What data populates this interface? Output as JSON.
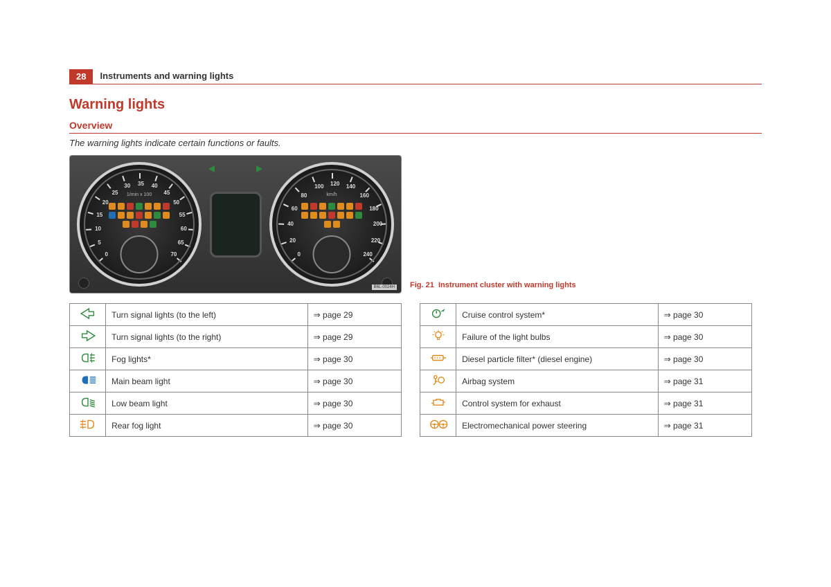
{
  "page": {
    "number": "28",
    "section": "Instruments and warning lights"
  },
  "headings": {
    "h1": "Warning lights",
    "h2": "Overview",
    "subtitle": "The warning lights indicate certain functions or faults."
  },
  "figure": {
    "caption_prefix": "Fig. 21",
    "caption_text": "Instrument cluster with warning lights",
    "image_ref": "B6L-0024H",
    "left_gauge": {
      "unit": "1/min x 100",
      "ticks": [
        "0",
        "5",
        "10",
        "15",
        "20",
        "25",
        "30",
        "35",
        "40",
        "45",
        "50",
        "55",
        "60",
        "65",
        "70"
      ]
    },
    "right_gauge": {
      "unit": "km/h",
      "ticks": [
        "0",
        "20",
        "40",
        "60",
        "80",
        "100",
        "120",
        "140",
        "160",
        "180",
        "200",
        "220",
        "240"
      ]
    }
  },
  "colors": {
    "brand_red": "#c0392b",
    "icon_green": "#2e8b3d",
    "icon_blue": "#1e6fb8",
    "icon_orange": "#e08b1e",
    "border_grey": "#888888",
    "text": "#333333"
  },
  "table_left": [
    {
      "icon": "turn-left",
      "color": "#2e8b3d",
      "desc": "Turn signal lights (to the left)",
      "page": "⇒ page 29"
    },
    {
      "icon": "turn-right",
      "color": "#2e8b3d",
      "desc": "Turn signal lights (to the right)",
      "page": "⇒ page 29"
    },
    {
      "icon": "fog-front",
      "color": "#2e8b3d",
      "desc": "Fog lights*",
      "page": "⇒ page 30"
    },
    {
      "icon": "high-beam",
      "color": "#1e6fb8",
      "desc": "Main beam light",
      "page": "⇒ page 30"
    },
    {
      "icon": "low-beam",
      "color": "#2e8b3d",
      "desc": "Low beam light",
      "page": "⇒ page 30"
    },
    {
      "icon": "fog-rear",
      "color": "#e08b1e",
      "desc": "Rear fog light",
      "page": "⇒ page 30"
    }
  ],
  "table_right": [
    {
      "icon": "cruise",
      "color": "#2e8b3d",
      "desc": "Cruise control system*",
      "page": "⇒ page 30"
    },
    {
      "icon": "bulb",
      "color": "#e08b1e",
      "desc": "Failure of the light bulbs",
      "page": "⇒ page 30"
    },
    {
      "icon": "dpf",
      "color": "#e08b1e",
      "desc": "Diesel particle filter* (diesel engine)",
      "page": "⇒ page 30"
    },
    {
      "icon": "airbag",
      "color": "#e08b1e",
      "desc": "Airbag system",
      "page": "⇒ page 31"
    },
    {
      "icon": "exhaust",
      "color": "#e08b1e",
      "desc": "Control system for exhaust",
      "page": "⇒ page 31"
    },
    {
      "icon": "steering",
      "color": "#e08b1e",
      "desc": "Electromechanical power steering",
      "page": "⇒ page 31"
    }
  ]
}
